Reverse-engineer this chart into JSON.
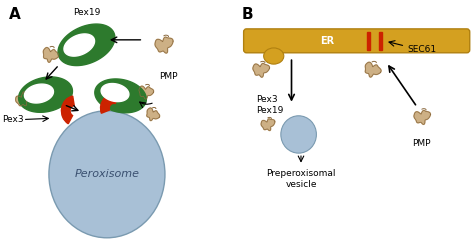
{
  "panel_A_label": "A",
  "panel_B_label": "B",
  "peroxisome_label": "Peroxisome",
  "pex19_label": "Pex19",
  "pex3_label": "Pex3",
  "pmp_label_A": "PMP",
  "er_label": "ER",
  "sec61_label": "SEC61",
  "pex3_pex19_label": "Pex3\nPex19",
  "pmp_label_B": "PMP",
  "preperoxisomal_label": "Preperoxisomal\nvesicle",
  "bg_color": "#ffffff",
  "peroxisome_color": "#a8c0d6",
  "peroxisome_edge": "#7a9ab0",
  "green_color": "#2d7a2d",
  "red_color": "#cc2200",
  "er_color": "#d4a020",
  "er_edge": "#b08010",
  "vesicle_color": "#a8c0d6",
  "vesicle_edge": "#7a9ab0",
  "er_knob_color": "#d4a020",
  "protein_color": "#c8a878",
  "protein_edge": "#8b6a40",
  "text_color": "#000000",
  "arrow_color": "#000000"
}
